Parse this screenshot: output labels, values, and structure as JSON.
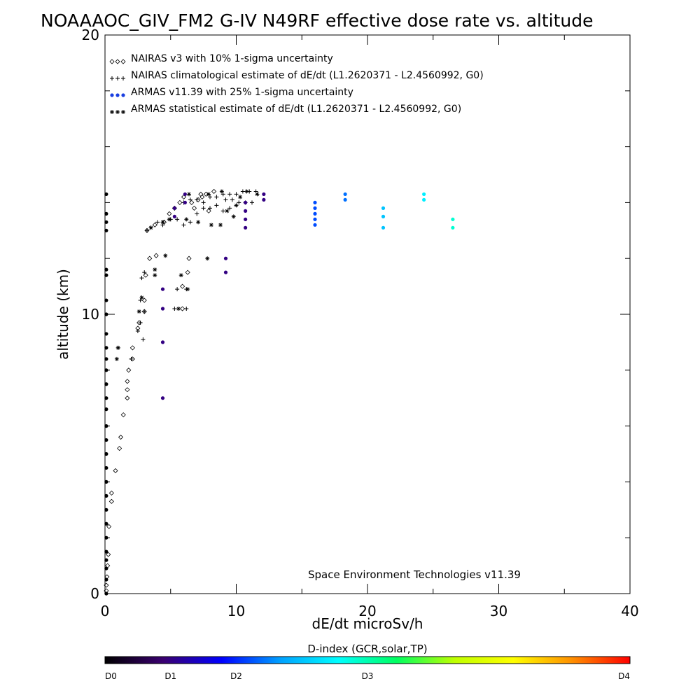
{
  "chart_data": {
    "type": "scatter",
    "title": "NOAAAOC_GIV_FM2 G-IV   N49RF  effective dose rate vs. altitude",
    "xlabel": "dE/dt microSv/h",
    "ylabel": "altitude (km)",
    "xlim": [
      0,
      40
    ],
    "ylim": [
      0,
      20
    ],
    "x_ticks": [
      "0",
      "10",
      "20",
      "30",
      "40"
    ],
    "y_ticks": [
      "0",
      "10",
      "20"
    ],
    "grid": false,
    "legend_placement": "top-left",
    "legend": [
      {
        "marker": "◇◇◇",
        "label": "NAIRAS v3 with 10% 1-sigma uncertainty"
      },
      {
        "marker": "+++",
        "label": "NAIRAS climatological estimate of dE/dt (L1.2620371 - L2.4560992, G0)"
      },
      {
        "marker": "●●●",
        "label": "ARMAS v11.39 with 25% 1-sigma uncertainty"
      },
      {
        "marker": "✱✱✱",
        "label": "ARMAS statistical estimate of dE/dt (L1.2620371 - L2.4560992, G0)"
      }
    ],
    "annotation": "Space Environment Technologies v11.39",
    "colorbar": {
      "title": "D-index (GCR,solar,TP)",
      "labels": [
        "D0",
        "D1",
        "D2",
        "D3",
        "D4"
      ],
      "label_positions": [
        0,
        1,
        2,
        4,
        8
      ],
      "range": [
        0,
        8
      ],
      "colors": [
        "#000000",
        "#3a0070",
        "#0000ff",
        "#00a0ff",
        "#00ffff",
        "#00ff60",
        "#c0ff00",
        "#ffff00",
        "#ff9000",
        "#ff0000"
      ]
    },
    "series": [
      {
        "name": "NAIRAS v3 with 10% 1-sigma uncertainty",
        "marker": "diamond",
        "points": [
          [
            0.1,
            0.1
          ],
          [
            0.1,
            0.3
          ],
          [
            0.15,
            0.6
          ],
          [
            0.2,
            1.0
          ],
          [
            0.25,
            1.4
          ],
          [
            0.3,
            2.4
          ],
          [
            0.5,
            3.3
          ],
          [
            0.5,
            3.6
          ],
          [
            0.8,
            4.4
          ],
          [
            1.1,
            5.2
          ],
          [
            1.2,
            5.6
          ],
          [
            1.4,
            6.4
          ],
          [
            1.7,
            7.0
          ],
          [
            1.7,
            7.3
          ],
          [
            1.7,
            7.6
          ],
          [
            1.8,
            8.0
          ],
          [
            2.1,
            8.4
          ],
          [
            2.1,
            8.8
          ],
          [
            2.5,
            9.5
          ],
          [
            2.6,
            9.7
          ],
          [
            3.0,
            10.1
          ],
          [
            3.0,
            10.5
          ],
          [
            3.1,
            11.4
          ],
          [
            3.4,
            12.0
          ],
          [
            3.9,
            12.1
          ],
          [
            5.9,
            10.2
          ],
          [
            5.9,
            11.0
          ],
          [
            6.3,
            11.5
          ],
          [
            6.4,
            12.0
          ],
          [
            3.2,
            13.0
          ],
          [
            3.8,
            13.2
          ],
          [
            4.5,
            13.3
          ],
          [
            4.9,
            13.6
          ],
          [
            5.3,
            13.8
          ],
          [
            5.7,
            14.0
          ],
          [
            6.0,
            14.2
          ],
          [
            6.6,
            14.0
          ],
          [
            6.8,
            13.8
          ],
          [
            7.1,
            14.1
          ],
          [
            7.4,
            14.2
          ],
          [
            7.9,
            13.7
          ],
          [
            8.3,
            14.4
          ],
          [
            7.3,
            14.3
          ],
          [
            7.7,
            14.3
          ]
        ]
      },
      {
        "name": "NAIRAS climatological estimate of dE/dt (L1.2620371 - L2.4560992, G0)",
        "marker": "plus",
        "points": [
          [
            1.0,
            8.8
          ],
          [
            2.0,
            8.4
          ],
          [
            2.7,
            9.7
          ],
          [
            2.9,
            9.1
          ],
          [
            2.5,
            9.4
          ],
          [
            2.7,
            10.5
          ],
          [
            3.0,
            10.1
          ],
          [
            2.8,
            11.3
          ],
          [
            3.0,
            11.5
          ],
          [
            5.3,
            10.2
          ],
          [
            5.5,
            10.9
          ],
          [
            6.2,
            10.2
          ],
          [
            6.2,
            10.9
          ],
          [
            3.2,
            13.0
          ],
          [
            3.5,
            13.1
          ],
          [
            4.0,
            13.3
          ],
          [
            4.4,
            13.2
          ],
          [
            5.0,
            13.4
          ],
          [
            5.5,
            13.4
          ],
          [
            6.0,
            13.2
          ],
          [
            6.5,
            13.3
          ],
          [
            7.0,
            13.6
          ],
          [
            7.5,
            13.8
          ],
          [
            8.0,
            13.8
          ],
          [
            8.5,
            13.9
          ],
          [
            9.0,
            13.7
          ],
          [
            9.5,
            13.8
          ],
          [
            6.0,
            14.0
          ],
          [
            6.5,
            14.1
          ],
          [
            7.0,
            14.1
          ],
          [
            7.5,
            14.0
          ],
          [
            8.0,
            14.2
          ],
          [
            8.5,
            14.2
          ],
          [
            9.0,
            14.3
          ],
          [
            9.5,
            14.3
          ],
          [
            10.0,
            14.3
          ],
          [
            10.5,
            14.4
          ],
          [
            11.0,
            14.4
          ],
          [
            11.5,
            14.4
          ],
          [
            9.2,
            14.1
          ],
          [
            9.7,
            14.1
          ],
          [
            10.2,
            14.0
          ],
          [
            10.7,
            14.0
          ],
          [
            11.2,
            14.0
          ]
        ]
      },
      {
        "name": "ARMAS v11.39 with 25% 1-sigma uncertainty",
        "marker": "dot",
        "points": [
          [
            0.1,
            7.0
          ],
          [
            0.1,
            7.5
          ],
          [
            0.1,
            8.0
          ],
          [
            0.1,
            8.4
          ],
          [
            0.1,
            8.8
          ],
          [
            0.1,
            9.3
          ],
          [
            0.1,
            10.0
          ],
          [
            0.1,
            10.5
          ],
          [
            0.1,
            11.4
          ],
          [
            0.1,
            11.6
          ],
          [
            0.1,
            13.0
          ],
          [
            0.1,
            13.3
          ],
          [
            0.1,
            13.6
          ],
          [
            0.1,
            14.3
          ],
          [
            0.1,
            0.0
          ],
          [
            0.1,
            0.5
          ],
          [
            0.1,
            0.9
          ],
          [
            0.1,
            1.2
          ],
          [
            0.1,
            1.5
          ],
          [
            0.1,
            2.0
          ],
          [
            0.1,
            2.5
          ],
          [
            0.1,
            3.0
          ],
          [
            0.1,
            3.5
          ],
          [
            0.1,
            4.0
          ],
          [
            0.1,
            4.5
          ],
          [
            0.1,
            5.0
          ],
          [
            0.1,
            5.5
          ],
          [
            0.1,
            6.0
          ],
          [
            0.1,
            6.6
          ],
          [
            4.4,
            7.0
          ],
          [
            4.4,
            9.0
          ],
          [
            4.4,
            10.2
          ],
          [
            4.4,
            10.9
          ],
          [
            9.2,
            11.5
          ],
          [
            9.2,
            12.0
          ],
          [
            5.3,
            13.5
          ],
          [
            5.3,
            13.8
          ],
          [
            6.1,
            14.3
          ],
          [
            6.1,
            14.0
          ],
          [
            10.7,
            13.1
          ],
          [
            10.7,
            13.4
          ],
          [
            10.7,
            13.7
          ],
          [
            10.7,
            14.0
          ],
          [
            12.1,
            14.1
          ],
          [
            12.1,
            14.3
          ],
          [
            16.0,
            13.2
          ],
          [
            16.0,
            13.4
          ],
          [
            16.0,
            13.6
          ],
          [
            16.0,
            13.8
          ],
          [
            16.0,
            14.0
          ],
          [
            18.3,
            14.1
          ],
          [
            18.3,
            14.3
          ],
          [
            21.2,
            13.1
          ],
          [
            21.2,
            13.5
          ],
          [
            21.2,
            13.8
          ],
          [
            24.3,
            14.1
          ],
          [
            24.3,
            14.3
          ],
          [
            26.5,
            13.1
          ],
          [
            26.5,
            13.4
          ]
        ],
        "d_index": [
          0,
          0,
          0,
          0,
          0,
          0,
          0,
          0,
          0,
          0,
          0,
          0,
          0,
          0,
          0,
          0,
          0,
          0,
          0,
          0,
          0,
          0,
          0,
          0,
          0,
          0,
          0,
          0,
          0,
          1,
          1,
          1,
          1,
          1,
          1,
          1,
          1,
          1,
          1,
          1,
          1,
          1,
          1,
          1,
          1,
          2.2,
          2.2,
          2.2,
          2.2,
          2.2,
          2.4,
          2.4,
          3.0,
          3.0,
          3.0,
          3.4,
          3.4,
          3.8,
          3.8
        ]
      },
      {
        "name": "ARMAS statistical estimate of dE/dt (L1.2620371 - L2.4560992, G0)",
        "marker": "asterisk",
        "points": [
          [
            0.9,
            8.4
          ],
          [
            1.0,
            8.8
          ],
          [
            2.6,
            10.1
          ],
          [
            2.8,
            10.6
          ],
          [
            3.8,
            11.4
          ],
          [
            3.8,
            11.6
          ],
          [
            4.6,
            12.1
          ],
          [
            5.8,
            11.4
          ],
          [
            7.8,
            12.0
          ],
          [
            6.3,
            10.9
          ],
          [
            5.6,
            10.2
          ],
          [
            3.5,
            13.1
          ],
          [
            4.4,
            13.3
          ],
          [
            4.9,
            13.4
          ],
          [
            6.2,
            13.4
          ],
          [
            7.1,
            13.3
          ],
          [
            8.1,
            13.2
          ],
          [
            8.8,
            13.2
          ],
          [
            9.3,
            13.7
          ],
          [
            10.0,
            13.9
          ],
          [
            6.4,
            14.3
          ],
          [
            7.9,
            14.3
          ],
          [
            8.9,
            14.4
          ],
          [
            10.3,
            14.2
          ],
          [
            10.8,
            14.4
          ],
          [
            11.6,
            14.3
          ],
          [
            9.8,
            13.5
          ]
        ]
      }
    ]
  }
}
